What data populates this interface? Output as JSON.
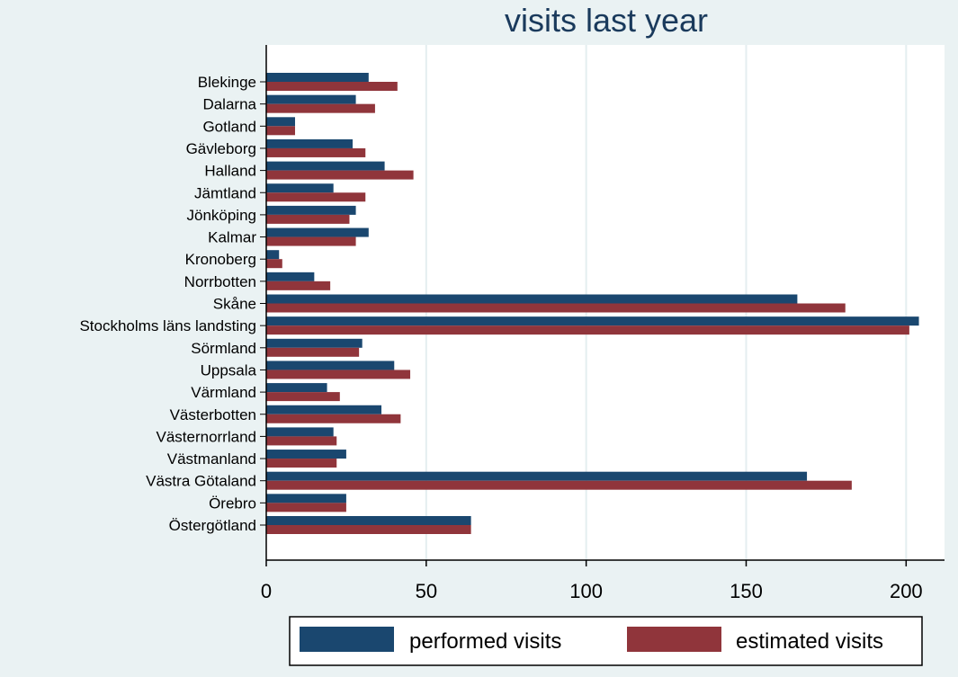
{
  "chart_data": {
    "type": "bar",
    "orientation": "horizontal",
    "title": "visits last year",
    "xlabel": "",
    "ylabel": "",
    "xlim": [
      0,
      212
    ],
    "xticks": [
      0,
      50,
      100,
      150,
      200
    ],
    "grid": true,
    "legend_position": "bottom",
    "categories": [
      "Blekinge",
      "Dalarna",
      "Gotland",
      "Gävleborg",
      "Halland",
      "Jämtland",
      "Jönköping",
      "Kalmar",
      "Kronoberg",
      "Norrbotten",
      "Skåne",
      "Stockholms läns landsting",
      "Sörmland",
      "Uppsala",
      "Värmland",
      "Västerbotten",
      "Västernorrland",
      "Västmanland",
      "Västra Götaland",
      "Örebro",
      "Östergötland"
    ],
    "series": [
      {
        "name": "performed visits",
        "color": "#1a476f",
        "values": [
          32,
          28,
          9,
          27,
          37,
          21,
          28,
          32,
          4,
          15,
          166,
          204,
          30,
          40,
          19,
          36,
          21,
          25,
          169,
          25,
          64
        ]
      },
      {
        "name": "estimated visits",
        "color": "#90353b",
        "values": [
          41,
          34,
          9,
          31,
          46,
          31,
          26,
          28,
          5,
          20,
          181,
          201,
          29,
          45,
          23,
          42,
          22,
          22,
          183,
          25,
          64
        ]
      }
    ]
  }
}
